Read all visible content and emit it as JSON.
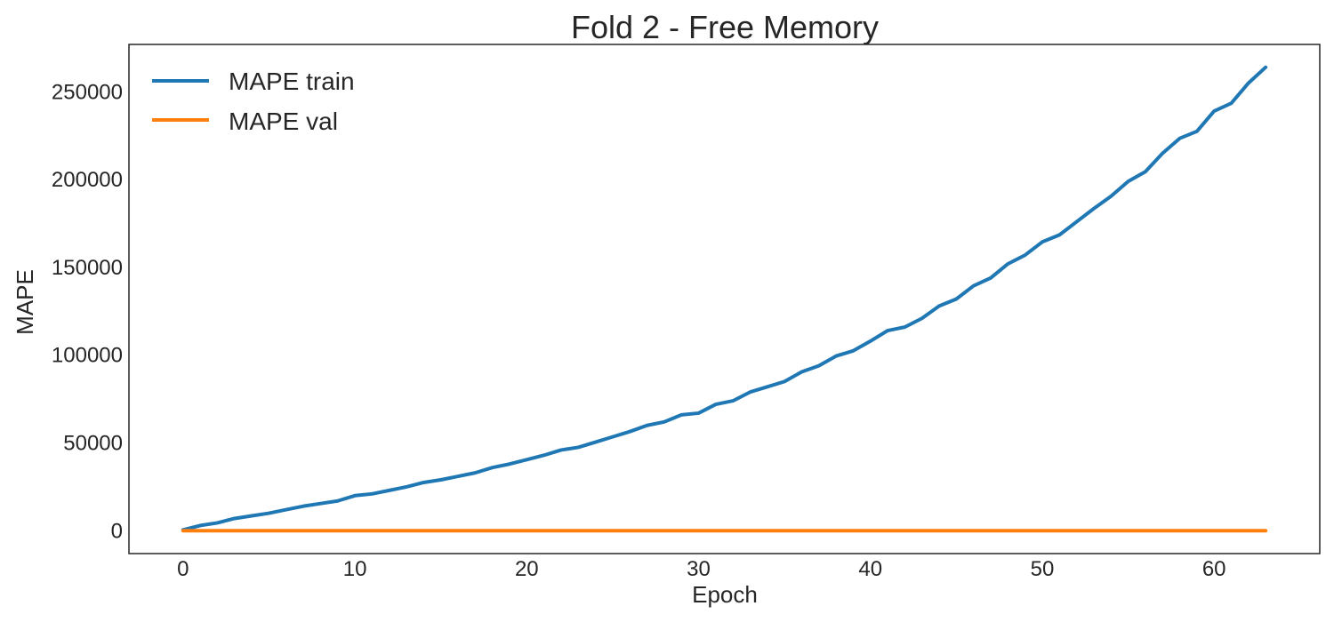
{
  "chart_data": {
    "type": "line",
    "title": "Fold 2 - Free Memory",
    "xlabel": "Epoch",
    "ylabel": "MAPE",
    "xlim": [
      -3.15,
      66.15
    ],
    "ylim": [
      -13000,
      277000
    ],
    "xticks": [
      "0",
      "10",
      "20",
      "30",
      "40",
      "50",
      "60"
    ],
    "yticks": [
      "0",
      "50000",
      "100000",
      "150000",
      "200000",
      "250000"
    ],
    "grid": false,
    "legend_position": "top-left",
    "x": [
      0,
      1,
      2,
      3,
      4,
      5,
      6,
      7,
      8,
      9,
      10,
      11,
      12,
      13,
      14,
      15,
      16,
      17,
      18,
      19,
      20,
      21,
      22,
      23,
      24,
      25,
      26,
      27,
      28,
      29,
      30,
      31,
      32,
      33,
      34,
      35,
      36,
      37,
      38,
      39,
      40,
      41,
      42,
      43,
      44,
      45,
      46,
      47,
      48,
      49,
      50,
      51,
      52,
      53,
      54,
      55,
      56,
      57,
      58,
      59,
      60,
      61,
      62,
      63
    ],
    "series": [
      {
        "name": "MAPE train",
        "color": "#1f77b4",
        "values": [
          500,
          3000,
          4500,
          7000,
          8500,
          10000,
          12000,
          14000,
          15500,
          17000,
          20000,
          21000,
          23000,
          25000,
          27500,
          29000,
          31000,
          33000,
          36000,
          38000,
          40500,
          43000,
          46000,
          47500,
          50500,
          53500,
          56500,
          60000,
          62000,
          66000,
          67000,
          72000,
          74000,
          79000,
          82000,
          85000,
          90500,
          94000,
          99500,
          102500,
          108000,
          114000,
          116000,
          121000,
          128000,
          132000,
          139500,
          144000,
          152000,
          157000,
          164500,
          168500,
          176000,
          183500,
          190500,
          199000,
          204500,
          215000,
          223500,
          227500,
          239000,
          243500,
          255000,
          264000
        ]
      },
      {
        "name": "MAPE val",
        "color": "#ff7f0e",
        "values": [
          0,
          0,
          0,
          0,
          0,
          0,
          0,
          0,
          0,
          0,
          0,
          0,
          0,
          0,
          0,
          0,
          0,
          0,
          0,
          0,
          0,
          0,
          0,
          0,
          0,
          0,
          0,
          0,
          0,
          0,
          0,
          0,
          0,
          0,
          0,
          0,
          0,
          0,
          0,
          0,
          0,
          0,
          0,
          0,
          0,
          0,
          0,
          0,
          0,
          0,
          0,
          0,
          0,
          0,
          0,
          0,
          0,
          0,
          0,
          0,
          0,
          0,
          0,
          0
        ]
      }
    ]
  }
}
